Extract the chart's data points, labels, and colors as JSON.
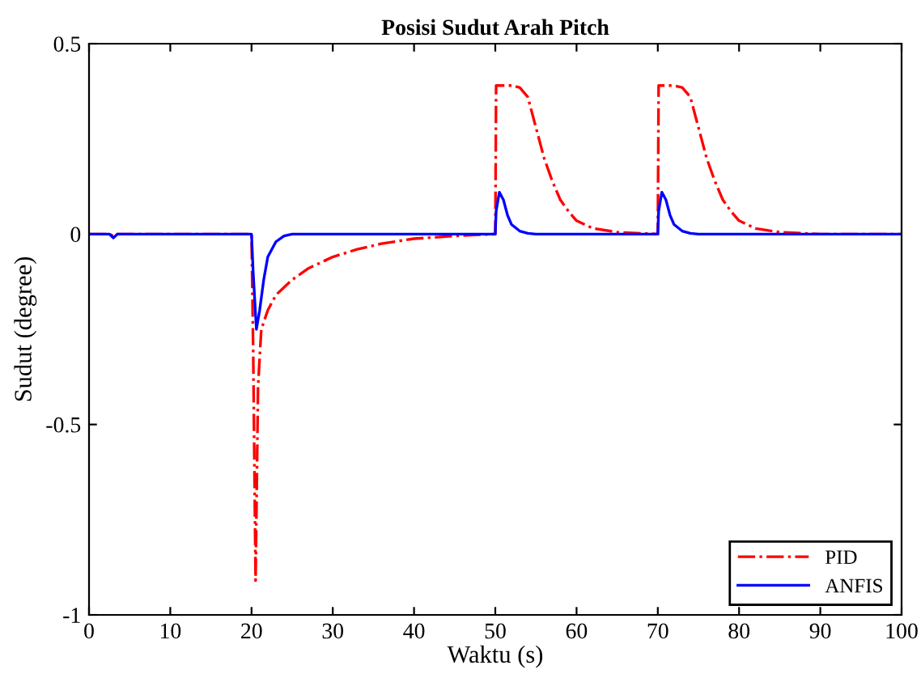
{
  "chart_data": {
    "type": "line",
    "title": "Posisi Sudut Arah Pitch",
    "xlabel": "Waktu (s)",
    "ylabel": "Sudut (degree)",
    "xlim": [
      0,
      100
    ],
    "xticks": [
      0,
      10,
      20,
      30,
      40,
      50,
      60,
      70,
      80,
      90,
      100
    ],
    "ylim": [
      -1,
      0.5
    ],
    "yticks": [
      -1,
      -0.5,
      0,
      0.5
    ],
    "grid": false,
    "legend": "bottom right",
    "series": [
      {
        "name": "PID",
        "color": "#ff0000",
        "line_style": "dashdot",
        "x": [
          0,
          2.5,
          3,
          3.5,
          20,
          20.2,
          20.5,
          20.8,
          21.2,
          22,
          23,
          25,
          27,
          30,
          33,
          36,
          40,
          45,
          50,
          50.1,
          52,
          53,
          54,
          55,
          56,
          57,
          58,
          59,
          60,
          62,
          65,
          68,
          70,
          70.1,
          72,
          73,
          74,
          75,
          76,
          77,
          78,
          79,
          80,
          82,
          85,
          88,
          90,
          100
        ],
        "values": [
          0,
          0,
          -0.005,
          0,
          0,
          -0.3,
          -0.91,
          -0.4,
          -0.25,
          -0.2,
          -0.16,
          -0.12,
          -0.09,
          -0.06,
          -0.04,
          -0.025,
          -0.012,
          -0.005,
          0,
          0.39,
          0.39,
          0.385,
          0.36,
          0.28,
          0.2,
          0.14,
          0.09,
          0.06,
          0.035,
          0.015,
          0.005,
          0.002,
          0,
          0.39,
          0.39,
          0.385,
          0.36,
          0.28,
          0.2,
          0.14,
          0.09,
          0.06,
          0.035,
          0.015,
          0.005,
          0.002,
          0,
          0
        ]
      },
      {
        "name": "ANFIS",
        "color": "#0000ff",
        "line_style": "solid",
        "x": [
          0,
          2.5,
          3,
          3.5,
          20,
          20.2,
          20.6,
          21,
          21.5,
          22,
          23,
          24,
          25,
          50,
          50.1,
          50.5,
          51,
          51.5,
          52,
          53,
          54,
          55,
          70,
          70.1,
          70.5,
          71,
          71.5,
          72,
          73,
          74,
          75,
          100
        ],
        "values": [
          0,
          0,
          -0.01,
          0,
          0,
          -0.1,
          -0.25,
          -0.2,
          -0.12,
          -0.06,
          -0.02,
          -0.005,
          0,
          0,
          0.06,
          0.11,
          0.09,
          0.05,
          0.025,
          0.008,
          0.002,
          0,
          0,
          0.06,
          0.11,
          0.09,
          0.05,
          0.025,
          0.008,
          0.002,
          0,
          0
        ]
      }
    ]
  }
}
